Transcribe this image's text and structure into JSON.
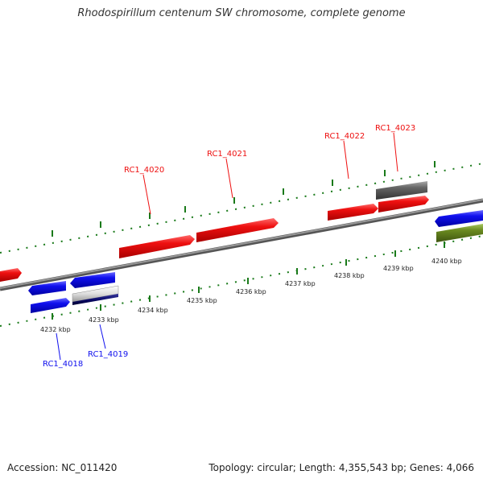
{
  "title": "Rhodospirillum centenum SW chromosome, complete genome",
  "accession": "Accession: NC_011420",
  "summary": "Topology: circular; Length: 4,355,543 bp; Genes: 4,066",
  "ticks": [
    "4232 kbp",
    "4233 kbp",
    "4234 kbp",
    "4235 kbp",
    "4236 kbp",
    "4237 kbp",
    "4238 kbp",
    "4239 kbp",
    "4240 kbp"
  ],
  "genes": [
    {
      "id": "RC1_4018",
      "color": "#1010ee"
    },
    {
      "id": "RC1_4019",
      "color": "#1010ee"
    },
    {
      "id": "RC1_4020",
      "color": "#ee1010"
    },
    {
      "id": "RC1_4021",
      "color": "#ee1010"
    },
    {
      "id": "RC1_4022",
      "color": "#ee1010"
    },
    {
      "id": "RC1_4023",
      "color": "#ee1010"
    }
  ],
  "colors": {
    "forward_gene": "#ee1010",
    "reverse_gene": "#1010ee",
    "backbone": "#888888",
    "tick_marks": "#1a7a1a",
    "grey_feature": "#666666",
    "olive_feature": "#6a8a20",
    "navy_feature": "#0a0a6a"
  }
}
